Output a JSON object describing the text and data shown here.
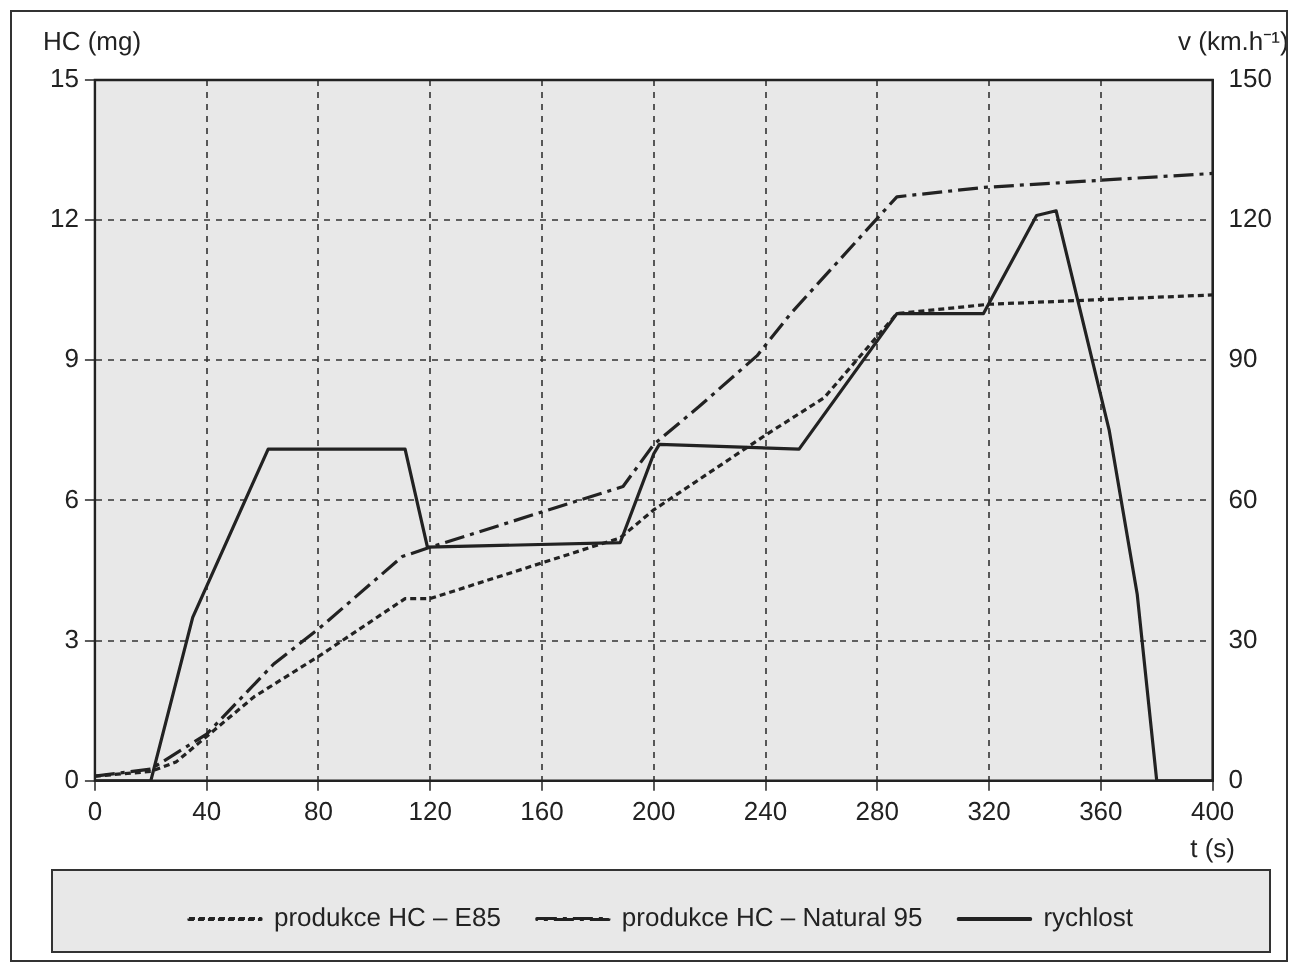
{
  "chart_data": {
    "type": "line",
    "ylabel": "HC (mg)",
    "y2label": "v (km.h⁻¹)",
    "xlabel": "t (s)",
    "xlim": [
      0,
      400
    ],
    "xticks": [
      0,
      40,
      80,
      120,
      160,
      200,
      240,
      280,
      320,
      360,
      400
    ],
    "ylim": [
      0,
      15
    ],
    "yticks": [
      0,
      3,
      6,
      9,
      12,
      15
    ],
    "y2lim": [
      0,
      150
    ],
    "y2ticks": [
      0,
      30,
      60,
      90,
      120,
      150
    ],
    "grid": true,
    "legend": "bottom",
    "marker": "none",
    "series": [
      {
        "name": "produkce HC – E85",
        "color": "#222222",
        "line_style": "dotted",
        "x": [
          0,
          20,
          29,
          57,
          81,
          111,
          120,
          188,
          200,
          240,
          261,
          287,
          320,
          400
        ],
        "values": [
          0.1,
          0.2,
          0.4,
          1.8,
          2.7,
          3.9,
          3.9,
          5.2,
          5.8,
          7.4,
          8.2,
          10,
          10.2,
          10.4
        ]
      },
      {
        "name": "produkce HC – Natural 95",
        "color": "#222222",
        "line_style": "dashed",
        "x": [
          0,
          20,
          40,
          64,
          81,
          110,
          120,
          189,
          200,
          216,
          237,
          249,
          287,
          318,
          345,
          400
        ],
        "values": [
          0.1,
          0.25,
          1.0,
          2.5,
          3.3,
          4.8,
          5.0,
          6.3,
          7.2,
          8.0,
          9.1,
          10.0,
          12.5,
          12.7,
          12.8,
          13.0
        ]
      },
      {
        "name": "rychlost",
        "color": "#222222",
        "line_style": "solid",
        "axis": "y2",
        "x": [
          0,
          20,
          35,
          62,
          111,
          119,
          188,
          200,
          202,
          252,
          287,
          318,
          337,
          344,
          363,
          373,
          380,
          400
        ],
        "values": [
          0,
          0,
          35,
          71,
          71,
          50,
          51,
          70,
          72,
          71,
          100,
          100,
          121,
          122,
          75,
          40,
          0,
          0
        ]
      }
    ]
  }
}
